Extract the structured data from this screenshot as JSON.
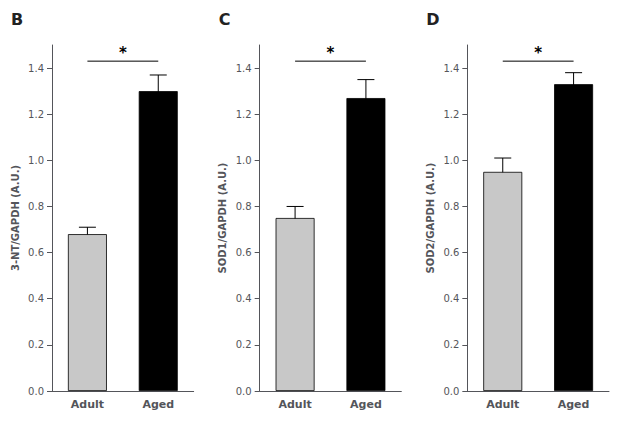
{
  "chart_data": [
    {
      "type": "bar",
      "title": "B",
      "categories": [
        "Adult",
        "Aged"
      ],
      "values": [
        0.68,
        1.3
      ],
      "errors": [
        0.03,
        0.07
      ],
      "colors": [
        "#c8c8c8",
        "#000000"
      ],
      "ylabel": "3-NT/GAPDH (A.U.)",
      "ylim": [
        0,
        1.5
      ],
      "yticks": [
        {
          "value": 0.0,
          "label": "0.0"
        },
        0.2,
        0.4,
        0.6,
        0.8,
        {
          "value": 1.0,
          "label": "1.0"
        },
        1.2,
        1.4
      ],
      "grid": false,
      "significance": {
        "text": "*",
        "from": "Adult",
        "to": "Aged",
        "y": 1.43
      }
    },
    {
      "type": "bar",
      "title": "C",
      "categories": [
        "Adult",
        "Aged"
      ],
      "values": [
        0.75,
        1.27
      ],
      "errors": [
        0.05,
        0.08
      ],
      "colors": [
        "#c8c8c8",
        "#000000"
      ],
      "ylabel": "SOD1/GAPDH (A.U.)",
      "ylim": [
        0,
        1.5
      ],
      "yticks": [
        {
          "value": 0.0,
          "label": "0.0"
        },
        0.2,
        0.4,
        0.6,
        0.8,
        {
          "value": 1.0,
          "label": "1.0"
        },
        1.2,
        1.4
      ],
      "grid": false,
      "significance": {
        "text": "*",
        "from": "Adult",
        "to": "Aged",
        "y": 1.43
      }
    },
    {
      "type": "bar",
      "title": "D",
      "categories": [
        "Adult",
        "Aged"
      ],
      "values": [
        0.95,
        1.33
      ],
      "errors": [
        0.06,
        0.05
      ],
      "colors": [
        "#c8c8c8",
        "#000000"
      ],
      "ylabel": "SOD2/GAPDH (A.U.)",
      "ylim": [
        0,
        1.5
      ],
      "yticks": [
        {
          "value": 0.0,
          "label": "0.0"
        },
        0.2,
        0.4,
        0.6,
        0.8,
        {
          "value": 1.0,
          "label": "1.0"
        },
        1.2,
        1.4
      ],
      "grid": false,
      "significance": {
        "text": "*",
        "from": "Adult",
        "to": "Aged",
        "y": 1.43
      }
    }
  ]
}
